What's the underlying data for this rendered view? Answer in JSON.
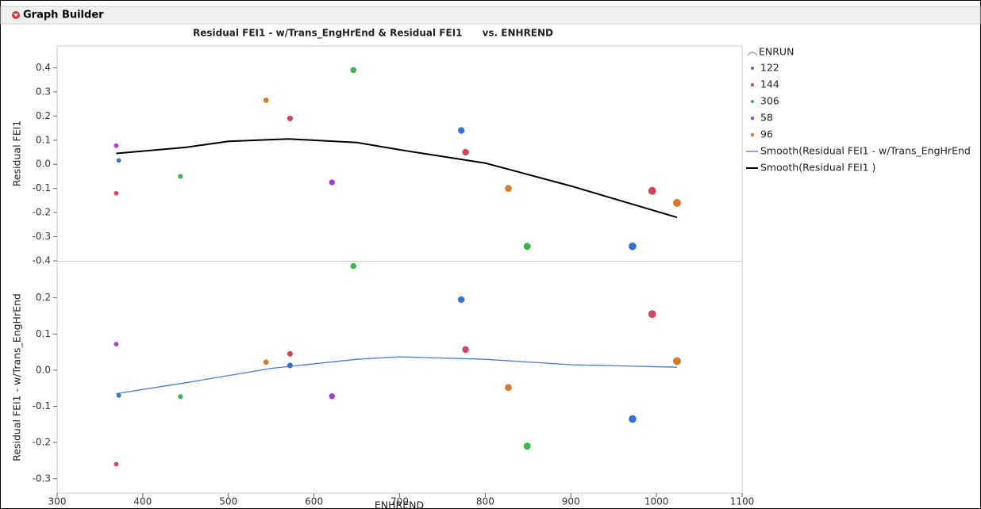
{
  "header": {
    "title": "Graph Builder"
  },
  "chart_data": {
    "type": "scatter",
    "title": "Residual FEI1 - w/Trans_EngHrEnd & Residual FEI1      vs. ENHREND",
    "xlabel": "ENHREND",
    "xlim": [
      300,
      1100
    ],
    "xticks": [
      300,
      400,
      500,
      600,
      700,
      800,
      900,
      1000,
      1100
    ],
    "panels": [
      {
        "ylabel": "Residual FEI1",
        "ylim": [
          -0.4,
          0.49
        ],
        "yticks": [
          0.4,
          0.3,
          0.2,
          0.1,
          {
            "value": 0,
            "label": "0.0"
          },
          -0.1,
          -0.2,
          -0.3,
          -0.4
        ]
      },
      {
        "ylabel": "Residual FEI1 - w/Trans_EngHrEnd",
        "ylim": [
          -0.34,
          0.3
        ],
        "yticks": [
          0.2,
          0.1,
          {
            "value": 0,
            "label": "0.0"
          },
          -0.1,
          -0.2,
          -0.3
        ]
      }
    ],
    "legend": {
      "title": "ENRUN"
    },
    "series": [
      {
        "name": "122",
        "color": "#3b6fd8",
        "x": [
          372,
          572,
          772,
          972
        ],
        "values": [
          0.016,
          0.19,
          0.14,
          -0.34
        ],
        "values_lower": [
          -0.07,
          0.013,
          0.195,
          -0.135
        ]
      },
      {
        "name": "144",
        "color": "#d6445a",
        "x": [
          369,
          572,
          777,
          995
        ],
        "values": [
          -0.12,
          0.19,
          0.05,
          -0.11
        ],
        "values_lower": [
          -0.26,
          0.045,
          0.057,
          0.155
        ]
      },
      {
        "name": "306",
        "color": "#3cb54a",
        "x": [
          444,
          646,
          849
        ],
        "values": [
          -0.05,
          0.39,
          -0.34
        ],
        "values_lower": [
          -0.073,
          0.288,
          -0.21
        ]
      },
      {
        "name": "58",
        "color": "#a63ad6",
        "x": [
          369,
          621
        ],
        "values": [
          0.077,
          -0.075
        ],
        "values_lower": [
          0.072,
          -0.072
        ]
      },
      {
        "name": "96",
        "color": "#d67b2a",
        "x": [
          544,
          827,
          1024
        ],
        "values": [
          0.265,
          -0.1,
          -0.16
        ],
        "values_lower": [
          0.022,
          -0.048,
          0.025
        ]
      }
    ],
    "smooths": [
      {
        "name": "Smooth(Residual FEI1 - w/Trans_EngHrEnd",
        "color": "#4a78e0",
        "x": [
          369,
          450,
          550,
          650,
          700,
          800,
          900,
          1024
        ],
        "values": [
          -0.065,
          -0.035,
          0.005,
          0.03,
          0.037,
          0.03,
          0.015,
          0.008
        ]
      },
      {
        "name": "Smooth(Residual FEI1    )",
        "color": "#000000",
        "x": [
          369,
          450,
          500,
          570,
          650,
          700,
          800,
          900,
          1024
        ],
        "values": [
          0.045,
          0.07,
          0.095,
          0.105,
          0.09,
          0.06,
          0.005,
          -0.09,
          -0.22
        ]
      }
    ]
  }
}
